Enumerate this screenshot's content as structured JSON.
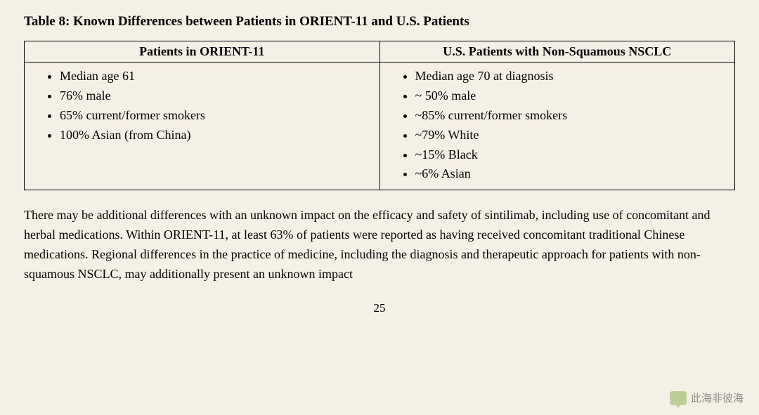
{
  "title": "Table 8: Known Differences between Patients in ORIENT-11 and U.S. Patients",
  "table": {
    "columns": [
      "Patients in ORIENT-11",
      "U.S. Patients with Non-Squamous NSCLC"
    ],
    "left_items": [
      "Median age 61",
      "76% male",
      "65% current/former smokers",
      "100% Asian (from China)"
    ],
    "right_items": [
      "Median age 70 at diagnosis",
      "~ 50% male",
      "~85% current/former smokers",
      "~79% White",
      "~15% Black",
      "~6% Asian"
    ],
    "border_color": "#000000",
    "background_color": "#f5f0e6",
    "header_fontsize": 18,
    "item_fontsize": 18
  },
  "paragraph": "There may be additional differences with an unknown impact on the efficacy and safety of sintilimab, including use of concomitant and herbal medications. Within ORIENT-11, at least 63% of patients were reported as having received concomitant traditional Chinese medications. Regional differences in the practice of medicine, including the diagnosis and therapeutic approach for patients with non-squamous NSCLC, may additionally present an unknown impact",
  "page_number": "25",
  "watermark": {
    "text": "此海非彼海",
    "icon_color": "#9fbf6b",
    "text_color": "#555555"
  },
  "page": {
    "background_color": "#f5f0e6",
    "text_color": "#000000",
    "font_family": "Times New Roman"
  }
}
